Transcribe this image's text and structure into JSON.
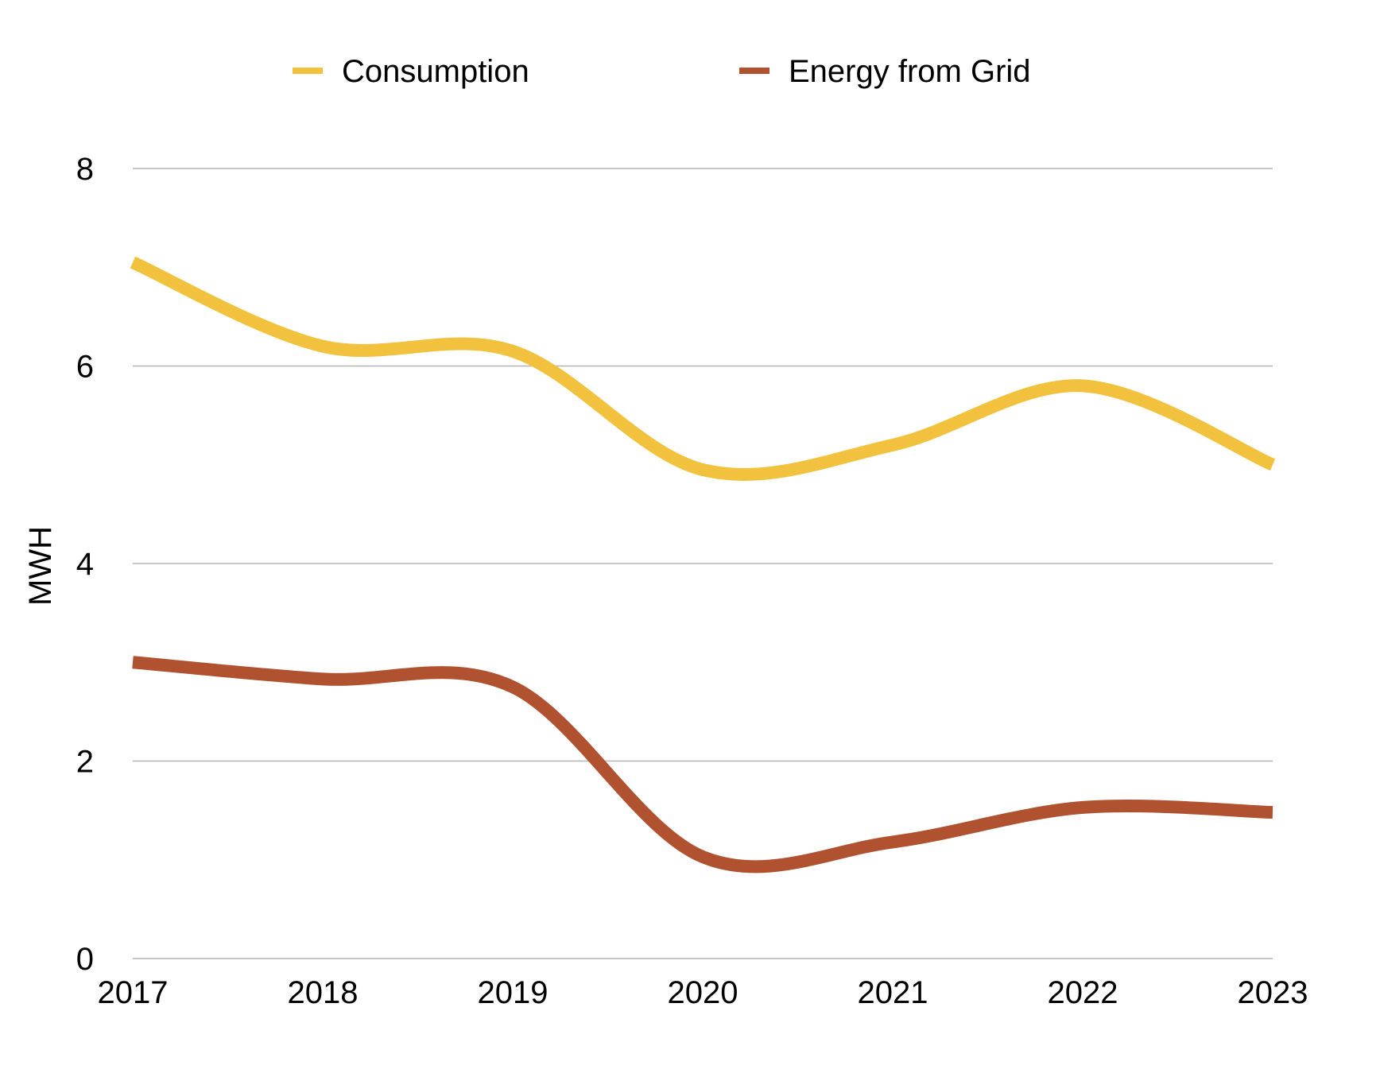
{
  "chart_data": {
    "type": "line",
    "title": "",
    "xlabel": "",
    "ylabel": "MWH",
    "categories": [
      "2017",
      "2018",
      "2019",
      "2020",
      "2021",
      "2022",
      "2023"
    ],
    "ylim": [
      0,
      8
    ],
    "yticks": [
      "0",
      "2",
      "4",
      "6",
      "8"
    ],
    "grid": true,
    "legend_position": "top",
    "smooth": true,
    "series": [
      {
        "name": "Consumption",
        "color": "#F2C23E",
        "values": [
          7.05,
          6.2,
          6.15,
          4.95,
          5.2,
          5.8,
          5.0
        ]
      },
      {
        "name": "Energy from Grid",
        "color": "#B05230",
        "values": [
          3.0,
          2.83,
          2.75,
          1.03,
          1.18,
          1.53,
          1.48
        ]
      }
    ]
  }
}
